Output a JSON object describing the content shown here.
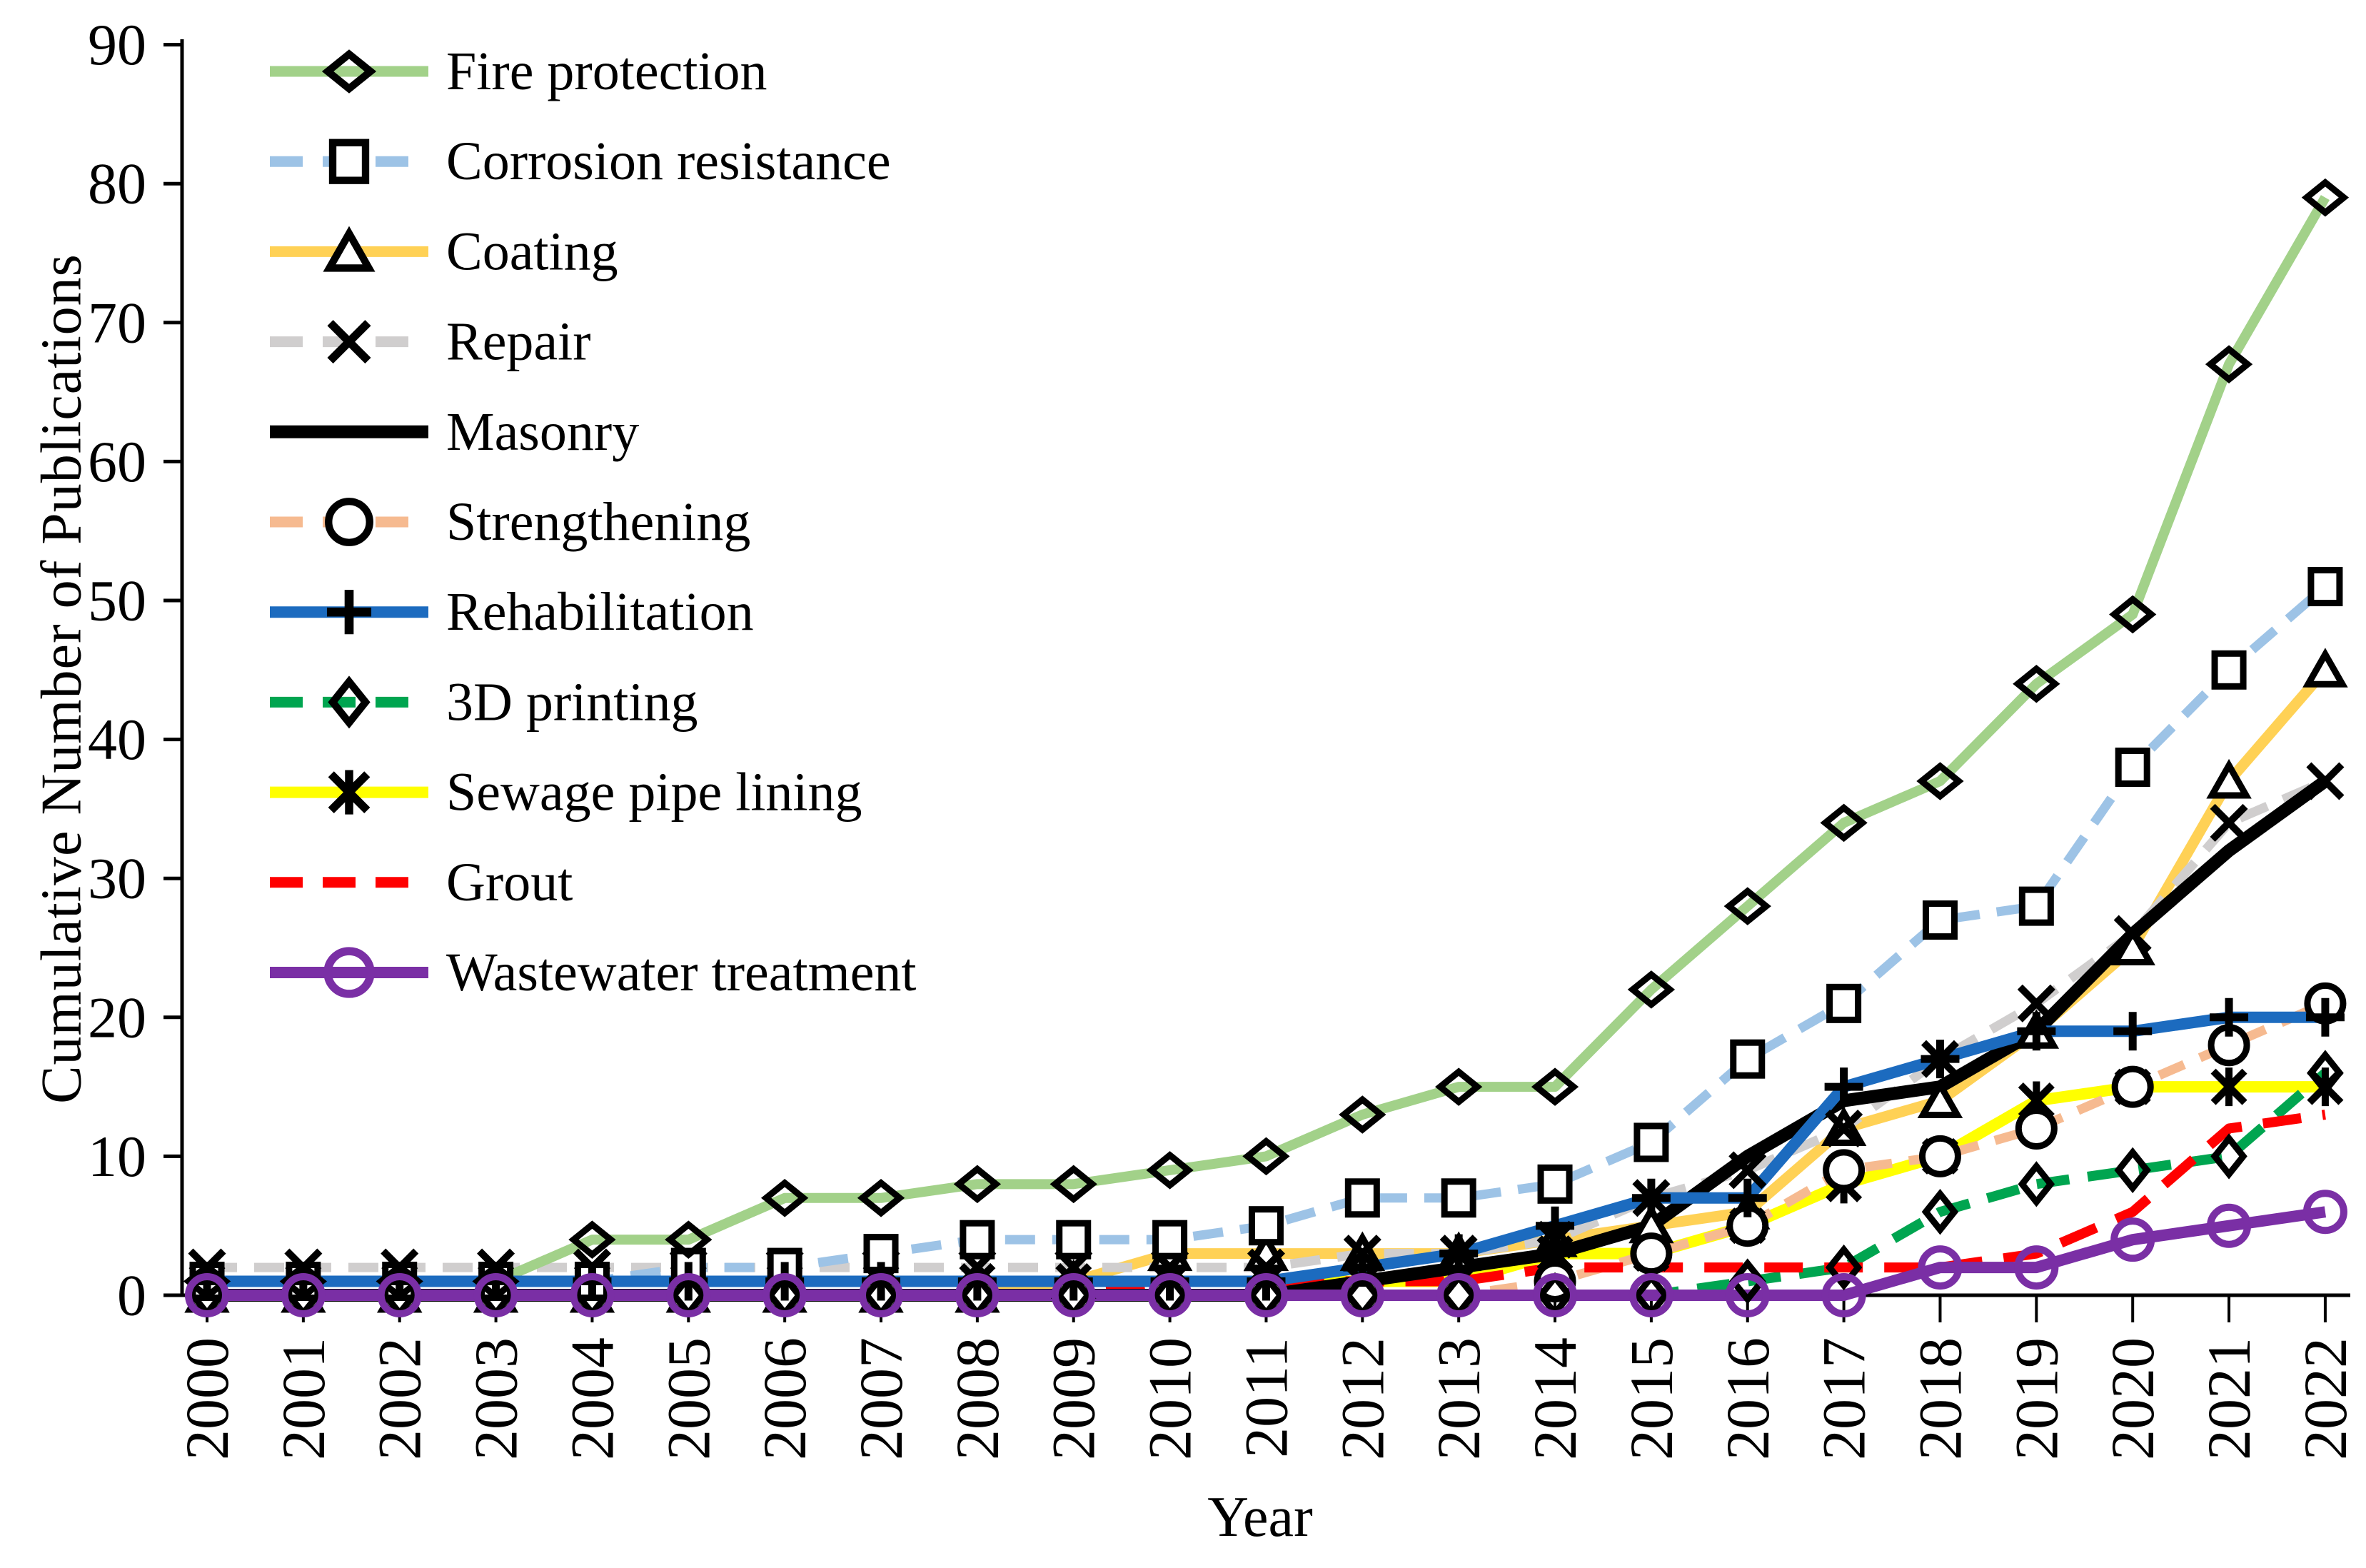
{
  "figure": {
    "description": "Line chart of cumulative number of publications per application area, 2000-2022",
    "background": "#ffffff",
    "text_color": "#000000"
  },
  "y_axis": {
    "title": "Cumulative Number of Publications",
    "tick_labels": [
      "0",
      "10",
      "20",
      "30",
      "40",
      "50",
      "60",
      "70",
      "80",
      "90"
    ],
    "min": 0,
    "max": 90
  },
  "x_axis": {
    "title": "Year",
    "tick_labels": [
      "2000",
      "2001",
      "2002",
      "2003",
      "2004",
      "2005",
      "2006",
      "2007",
      "2008",
      "2009",
      "2010",
      "2011",
      "2012",
      "2013",
      "2014",
      "2015",
      "2016",
      "2017",
      "2018",
      "2019",
      "2020",
      "2021",
      "2022"
    ]
  },
  "chart_data": {
    "type": "line",
    "title": "",
    "xlabel": "Year",
    "ylabel": "Cumulative Number of Publications",
    "x": [
      2000,
      2001,
      2002,
      2003,
      2004,
      2005,
      2006,
      2007,
      2008,
      2009,
      2010,
      2011,
      2012,
      2013,
      2014,
      2015,
      2016,
      2017,
      2018,
      2019,
      2020,
      2021,
      2022
    ],
    "ylim": [
      0,
      90
    ],
    "y_tick_step": 10,
    "grid": false,
    "legend_position": "inside top-left",
    "marker_stroke": "#000000",
    "series": [
      {
        "name": "Fire protection",
        "color": "#A2D189",
        "dash": "solid",
        "marker": "diamond-wide",
        "values": [
          1,
          1,
          1,
          1,
          4,
          4,
          7,
          7,
          8,
          8,
          9,
          10,
          13,
          15,
          15,
          22,
          28,
          34,
          37,
          44,
          49,
          67,
          79
        ]
      },
      {
        "name": "Corrosion resistance",
        "color": "#9DC3E6",
        "dash": "dashed",
        "marker": "square",
        "values": [
          1,
          1,
          1,
          1,
          1,
          2,
          2,
          3,
          4,
          4,
          4,
          5,
          7,
          7,
          8,
          11,
          17,
          21,
          27,
          28,
          38,
          45,
          51
        ]
      },
      {
        "name": "Coating",
        "color": "#FFD155",
        "dash": "solid",
        "marker": "triangle",
        "values": [
          0,
          0,
          0,
          0,
          0,
          0,
          0,
          0,
          0,
          1,
          3,
          3,
          3,
          3,
          4,
          5,
          6,
          12,
          14,
          19,
          25,
          37,
          45
        ]
      },
      {
        "name": "Repair",
        "color": "#D0CECE",
        "dash": "dashed",
        "marker": "x",
        "values": [
          2,
          2,
          2,
          2,
          2,
          2,
          2,
          2,
          2,
          2,
          2,
          2,
          3,
          3,
          4,
          7,
          9,
          12,
          17,
          21,
          26,
          34,
          37
        ]
      },
      {
        "name": "Masonry",
        "color": "#000000",
        "dash": "solid",
        "marker": "none",
        "values": [
          0,
          0,
          0,
          0,
          0,
          0,
          0,
          0,
          0,
          0,
          0,
          0,
          1,
          2,
          3,
          5,
          10,
          14,
          15,
          19,
          26,
          32,
          37
        ]
      },
      {
        "name": "Strengthening",
        "color": "#F6BA90",
        "dash": "dashed",
        "marker": "circle",
        "values": [
          0,
          0,
          0,
          0,
          0,
          0,
          0,
          0,
          0,
          0,
          0,
          0,
          0,
          0,
          1,
          3,
          5,
          9,
          10,
          12,
          15,
          18,
          21
        ]
      },
      {
        "name": "Rehabilitation",
        "color": "#1C6BBF",
        "dash": "solid",
        "marker": "plus",
        "values": [
          1,
          1,
          1,
          1,
          1,
          1,
          1,
          1,
          1,
          1,
          1,
          1,
          2,
          3,
          5,
          7,
          7,
          15,
          17,
          19,
          19,
          20,
          20
        ]
      },
      {
        "name": "3D printing",
        "color": "#00A550",
        "dash": "dashed",
        "marker": "diamond-tall",
        "values": [
          0,
          0,
          0,
          0,
          0,
          0,
          0,
          0,
          0,
          0,
          0,
          0,
          0,
          0,
          0,
          0,
          1,
          2,
          6,
          8,
          9,
          10,
          16
        ]
      },
      {
        "name": "Sewage pipe lining",
        "color": "#FFFF00",
        "dash": "solid",
        "marker": "asterisk",
        "values": [
          1,
          1,
          1,
          1,
          1,
          1,
          1,
          1,
          1,
          1,
          1,
          1,
          1,
          1,
          3,
          3,
          5,
          8,
          10,
          14,
          15,
          15,
          15
        ]
      },
      {
        "name": "Grout",
        "color": "#FF0000",
        "dash": "dashed",
        "marker": "none",
        "values": [
          0,
          0,
          0,
          0,
          0,
          0,
          0,
          0,
          0,
          0,
          1,
          1,
          1,
          1,
          2,
          2,
          2,
          2,
          2,
          3,
          6,
          12,
          13
        ]
      },
      {
        "name": "Wastewater treatment",
        "color": "#7A2FA5",
        "dash": "solid",
        "marker": "circle-purple",
        "values": [
          0,
          0,
          0,
          0,
          0,
          0,
          0,
          0,
          0,
          0,
          0,
          0,
          0,
          0,
          0,
          0,
          0,
          0,
          2,
          2,
          4,
          5,
          6
        ]
      }
    ]
  }
}
